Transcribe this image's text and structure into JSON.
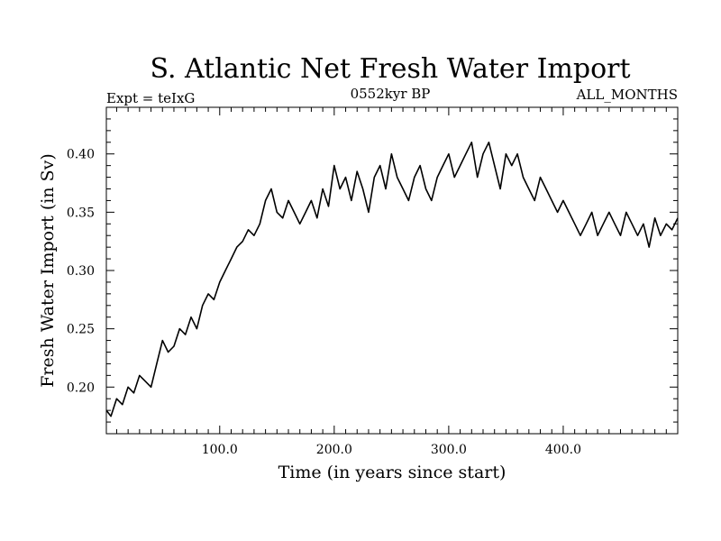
{
  "chart_data": {
    "type": "line",
    "title": "S. Atlantic Net Fresh Water Import",
    "subtitle_left": "Expt = teIxG",
    "subtitle_center": "0552kyr BP",
    "subtitle_right": "ALL_MONTHS",
    "xlabel": "Time (in years since start)",
    "ylabel": "Fresh Water Import (in Sv)",
    "xlim": [
      1,
      500
    ],
    "ylim": [
      0.16,
      0.44
    ],
    "xticks": [
      {
        "value": 100,
        "label": "100.0"
      },
      {
        "value": 200,
        "label": "200.0"
      },
      {
        "value": 300,
        "label": "300.0"
      },
      {
        "value": 400,
        "label": "400.0"
      }
    ],
    "yticks": [
      {
        "value": 0.2,
        "label": "0.20"
      },
      {
        "value": 0.25,
        "label": "0.25"
      },
      {
        "value": 0.3,
        "label": "0.30"
      },
      {
        "value": 0.35,
        "label": "0.35"
      },
      {
        "value": 0.4,
        "label": "0.40"
      }
    ],
    "grid": false,
    "series": [
      {
        "color": "#000000",
        "x": [
          1,
          5,
          10,
          15,
          20,
          25,
          30,
          35,
          40,
          45,
          50,
          55,
          60,
          65,
          70,
          75,
          80,
          85,
          90,
          95,
          100,
          105,
          110,
          115,
          120,
          125,
          130,
          135,
          140,
          145,
          150,
          155,
          160,
          165,
          170,
          175,
          180,
          185,
          190,
          195,
          200,
          205,
          210,
          215,
          220,
          225,
          230,
          235,
          240,
          245,
          250,
          255,
          260,
          265,
          270,
          275,
          280,
          285,
          290,
          295,
          300,
          305,
          310,
          315,
          320,
          325,
          330,
          335,
          340,
          345,
          350,
          355,
          360,
          365,
          370,
          375,
          380,
          385,
          390,
          395,
          400,
          405,
          410,
          415,
          420,
          425,
          430,
          435,
          440,
          445,
          450,
          455,
          460,
          465,
          470,
          475,
          480,
          485,
          490,
          495,
          500
        ],
        "y": [
          0.18,
          0.175,
          0.19,
          0.185,
          0.2,
          0.195,
          0.21,
          0.205,
          0.2,
          0.22,
          0.24,
          0.23,
          0.235,
          0.25,
          0.245,
          0.26,
          0.25,
          0.27,
          0.28,
          0.275,
          0.29,
          0.3,
          0.31,
          0.32,
          0.325,
          0.335,
          0.33,
          0.34,
          0.36,
          0.37,
          0.35,
          0.345,
          0.36,
          0.35,
          0.34,
          0.35,
          0.36,
          0.345,
          0.37,
          0.355,
          0.39,
          0.37,
          0.38,
          0.36,
          0.385,
          0.37,
          0.35,
          0.38,
          0.39,
          0.37,
          0.4,
          0.38,
          0.37,
          0.36,
          0.38,
          0.39,
          0.37,
          0.36,
          0.38,
          0.39,
          0.4,
          0.38,
          0.39,
          0.4,
          0.41,
          0.38,
          0.4,
          0.41,
          0.39,
          0.37,
          0.4,
          0.39,
          0.4,
          0.38,
          0.37,
          0.36,
          0.38,
          0.37,
          0.36,
          0.35,
          0.36,
          0.35,
          0.34,
          0.33,
          0.34,
          0.35,
          0.33,
          0.34,
          0.35,
          0.34,
          0.33,
          0.35,
          0.34,
          0.33,
          0.34,
          0.32,
          0.345,
          0.33,
          0.34,
          0.335,
          0.345
        ]
      }
    ]
  }
}
